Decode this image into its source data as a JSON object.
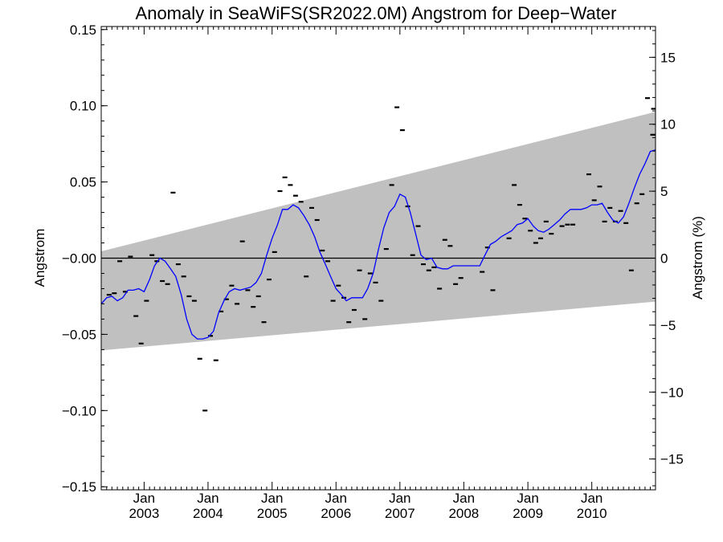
{
  "chart_data": {
    "type": "scatter",
    "title": "Anomaly in SeaWiFS(SR2022.0M) Angstrom for Deep−Water",
    "ylabel": "Angstrom",
    "ylabel_right": "Angstrom (%)",
    "x_range": [
      "2002-05-01",
      "2010-12-31"
    ],
    "ylim": [
      -0.152,
      0.152
    ],
    "ylim_right": [
      -17.3,
      17.3
    ],
    "y_ticks": [
      -0.15,
      -0.1,
      -0.05,
      0.0,
      0.05,
      0.1,
      0.15
    ],
    "y_tick_labels": [
      "−0.15",
      "−0.10",
      "−0.05",
      "−0.00",
      "0.05",
      "0.10",
      "0.15"
    ],
    "y_right_ticks": [
      -15,
      -10,
      -5,
      0,
      5,
      10,
      15
    ],
    "y_right_tick_labels": [
      "−15",
      "−10",
      "−5",
      "0",
      "5",
      "10",
      "15"
    ],
    "x_ticks": [
      {
        "date": "2003-01-01",
        "month": "Jan",
        "year": "2003"
      },
      {
        "date": "2004-01-01",
        "month": "Jan",
        "year": "2004"
      },
      {
        "date": "2005-01-01",
        "month": "Jan",
        "year": "2005"
      },
      {
        "date": "2006-01-01",
        "month": "Jan",
        "year": "2006"
      },
      {
        "date": "2007-01-01",
        "month": "Jan",
        "year": "2007"
      },
      {
        "date": "2008-01-01",
        "month": "Jan",
        "year": "2008"
      },
      {
        "date": "2009-01-01",
        "month": "Jan",
        "year": "2009"
      },
      {
        "date": "2010-01-01",
        "month": "Jan",
        "year": "2010"
      }
    ],
    "envelope": {
      "color": "#c0c0c0",
      "upper": [
        [
          "2002-05-01",
          0.0045
        ],
        [
          "2010-12-31",
          0.096
        ]
      ],
      "lower": [
        [
          "2002-05-01",
          -0.0605
        ],
        [
          "2010-12-31",
          -0.0285
        ]
      ]
    },
    "zero_line": 0.0,
    "series": [
      {
        "kind": "monthly",
        "color": "#000000",
        "points": [
          [
            "2002-06",
            -0.024
          ],
          [
            "2002-07",
            -0.023
          ],
          [
            "2002-08",
            -0.002
          ],
          [
            "2002-09",
            -0.022
          ],
          [
            "2002-10",
            0.001
          ],
          [
            "2002-11",
            -0.038
          ],
          [
            "2002-12",
            -0.056
          ],
          [
            "2003-01",
            -0.028
          ],
          [
            "2003-02",
            0.002
          ],
          [
            "2003-03",
            -0.002
          ],
          [
            "2003-04",
            -0.015
          ],
          [
            "2003-05",
            -0.017
          ],
          [
            "2003-06",
            0.043
          ],
          [
            "2003-07",
            -0.004
          ],
          [
            "2003-08",
            -0.012
          ],
          [
            "2003-09",
            -0.025
          ],
          [
            "2003-10",
            -0.028
          ],
          [
            "2003-11",
            -0.066
          ],
          [
            "2003-12",
            -0.1
          ],
          [
            "2004-01",
            -0.051
          ],
          [
            "2004-02",
            -0.067
          ],
          [
            "2004-03",
            -0.035
          ],
          [
            "2004-04",
            -0.027
          ],
          [
            "2004-05",
            -0.018
          ],
          [
            "2004-06",
            -0.03
          ],
          [
            "2004-07",
            0.011
          ],
          [
            "2004-08",
            -0.021
          ],
          [
            "2004-09",
            -0.032
          ],
          [
            "2004-10",
            -0.025
          ],
          [
            "2004-11",
            -0.042
          ],
          [
            "2004-12",
            -0.014
          ],
          [
            "2005-01",
            0.004
          ],
          [
            "2005-02",
            0.044
          ],
          [
            "2005-03",
            0.053
          ],
          [
            "2005-04",
            0.048
          ],
          [
            "2005-05",
            0.041
          ],
          [
            "2005-06",
            0.037
          ],
          [
            "2005-07",
            -0.012
          ],
          [
            "2005-08",
            0.033
          ],
          [
            "2005-09",
            0.025
          ],
          [
            "2005-10",
            0.005
          ],
          [
            "2005-11",
            -0.002
          ],
          [
            "2005-12",
            -0.028
          ],
          [
            "2006-01",
            -0.018
          ],
          [
            "2006-02",
            -0.026
          ],
          [
            "2006-03",
            -0.042
          ],
          [
            "2006-04",
            -0.034
          ],
          [
            "2006-05",
            -0.008
          ],
          [
            "2006-06",
            -0.04
          ],
          [
            "2006-07",
            -0.01
          ],
          [
            "2006-08",
            -0.016
          ],
          [
            "2006-09",
            -0.028
          ],
          [
            "2006-10",
            0.006
          ],
          [
            "2006-11",
            0.048
          ],
          [
            "2006-12",
            0.099
          ],
          [
            "2007-01",
            0.084
          ],
          [
            "2007-02",
            0.034
          ],
          [
            "2007-03",
            0.002
          ],
          [
            "2007-04",
            0.021
          ],
          [
            "2007-05",
            -0.004
          ],
          [
            "2007-06",
            -0.008
          ],
          [
            "2007-07",
            -0.006
          ],
          [
            "2007-08",
            -0.02
          ],
          [
            "2007-09",
            0.012
          ],
          [
            "2007-10",
            0.008
          ],
          [
            "2007-11",
            -0.017
          ],
          [
            "2007-12",
            -0.013
          ],
          [
            "2008-04",
            -0.009
          ],
          [
            "2008-05",
            0.007
          ],
          [
            "2008-06",
            -0.021
          ],
          [
            "2008-09",
            0.013
          ],
          [
            "2008-10",
            0.048
          ],
          [
            "2008-11",
            0.035
          ],
          [
            "2008-12",
            0.026
          ],
          [
            "2009-01",
            0.018
          ],
          [
            "2009-02",
            0.01
          ],
          [
            "2009-03",
            0.013
          ],
          [
            "2009-04",
            0.024
          ],
          [
            "2009-05",
            0.016
          ],
          [
            "2009-07",
            0.021
          ],
          [
            "2009-08",
            0.022
          ],
          [
            "2009-09",
            0.022
          ],
          [
            "2009-12",
            0.055
          ],
          [
            "2010-01",
            0.038
          ],
          [
            "2010-02",
            0.047
          ],
          [
            "2010-03",
            0.024
          ],
          [
            "2010-04",
            0.033
          ],
          [
            "2010-05",
            0.024
          ],
          [
            "2010-06",
            0.031
          ],
          [
            "2010-07",
            0.023
          ],
          [
            "2010-08",
            -0.008
          ],
          [
            "2010-09",
            0.036
          ],
          [
            "2010-10",
            0.042
          ],
          [
            "2010-11",
            0.105
          ],
          [
            "2010-12",
            0.081
          ],
          [
            "2010-12-20",
            0.098
          ]
        ]
      },
      {
        "kind": "smoothed",
        "color": "#0000ff",
        "points": [
          [
            "2002-05-01",
            -0.03
          ],
          [
            "2002-06-01",
            -0.026
          ],
          [
            "2002-07-01",
            -0.025
          ],
          [
            "2002-08-01",
            -0.028
          ],
          [
            "2002-09-01",
            -0.026
          ],
          [
            "2002-10-01",
            -0.021
          ],
          [
            "2002-11-01",
            -0.021
          ],
          [
            "2002-12-01",
            -0.02
          ],
          [
            "2003-01-01",
            -0.022
          ],
          [
            "2003-02-01",
            -0.014
          ],
          [
            "2003-03-01",
            -0.005
          ],
          [
            "2003-04-01",
            0.0
          ],
          [
            "2003-05-01",
            -0.002
          ],
          [
            "2003-06-01",
            -0.007
          ],
          [
            "2003-07-01",
            -0.012
          ],
          [
            "2003-08-01",
            -0.024
          ],
          [
            "2003-09-01",
            -0.04
          ],
          [
            "2003-10-01",
            -0.05
          ],
          [
            "2003-11-01",
            -0.053
          ],
          [
            "2003-12-01",
            -0.053
          ],
          [
            "2004-01-01",
            -0.052
          ],
          [
            "2004-02-01",
            -0.048
          ],
          [
            "2004-03-01",
            -0.036
          ],
          [
            "2004-04-01",
            -0.028
          ],
          [
            "2004-05-01",
            -0.022
          ],
          [
            "2004-06-01",
            -0.02
          ],
          [
            "2004-07-01",
            -0.021
          ],
          [
            "2004-08-01",
            -0.02
          ],
          [
            "2004-09-01",
            -0.019
          ],
          [
            "2004-10-01",
            -0.016
          ],
          [
            "2004-11-01",
            -0.01
          ],
          [
            "2004-12-01",
            0.002
          ],
          [
            "2005-01-01",
            0.013
          ],
          [
            "2005-02-01",
            0.022
          ],
          [
            "2005-03-01",
            0.032
          ],
          [
            "2005-04-01",
            0.032
          ],
          [
            "2005-05-01",
            0.035
          ],
          [
            "2005-06-01",
            0.033
          ],
          [
            "2005-07-01",
            0.028
          ],
          [
            "2005-08-01",
            0.022
          ],
          [
            "2005-09-01",
            0.014
          ],
          [
            "2005-10-01",
            0.004
          ],
          [
            "2005-11-01",
            -0.004
          ],
          [
            "2005-12-01",
            -0.012
          ],
          [
            "2006-01-01",
            -0.02
          ],
          [
            "2006-02-01",
            -0.024
          ],
          [
            "2006-03-01",
            -0.028
          ],
          [
            "2006-04-01",
            -0.026
          ],
          [
            "2006-05-01",
            -0.026
          ],
          [
            "2006-06-01",
            -0.026
          ],
          [
            "2006-07-01",
            -0.02
          ],
          [
            "2006-08-01",
            -0.01
          ],
          [
            "2006-09-01",
            0.006
          ],
          [
            "2006-10-01",
            0.02
          ],
          [
            "2006-11-01",
            0.03
          ],
          [
            "2006-12-01",
            0.034
          ],
          [
            "2007-01-01",
            0.042
          ],
          [
            "2007-02-01",
            0.04
          ],
          [
            "2007-03-01",
            0.03
          ],
          [
            "2007-04-01",
            0.016
          ],
          [
            "2007-05-01",
            0.002
          ],
          [
            "2007-06-01",
            -0.001
          ],
          [
            "2007-07-01",
            0.0
          ],
          [
            "2007-08-01",
            -0.006
          ],
          [
            "2007-09-01",
            -0.007
          ],
          [
            "2007-10-01",
            -0.007
          ],
          [
            "2007-11-01",
            -0.005
          ],
          [
            "2007-12-01",
            -0.005
          ],
          [
            "2008-01-01",
            -0.005
          ],
          [
            "2008-02-01",
            -0.005
          ],
          [
            "2008-03-01",
            -0.005
          ],
          [
            "2008-04-01",
            -0.005
          ],
          [
            "2008-05-01",
            0.002
          ],
          [
            "2008-06-01",
            0.009
          ],
          [
            "2008-07-01",
            0.011
          ],
          [
            "2008-08-01",
            0.014
          ],
          [
            "2008-09-01",
            0.016
          ],
          [
            "2008-10-01",
            0.018
          ],
          [
            "2008-11-01",
            0.022
          ],
          [
            "2008-12-01",
            0.023
          ],
          [
            "2009-01-01",
            0.026
          ],
          [
            "2009-02-01",
            0.021
          ],
          [
            "2009-03-01",
            0.018
          ],
          [
            "2009-04-01",
            0.017
          ],
          [
            "2009-05-01",
            0.019
          ],
          [
            "2009-06-01",
            0.022
          ],
          [
            "2009-07-01",
            0.025
          ],
          [
            "2009-08-01",
            0.029
          ],
          [
            "2009-09-01",
            0.032
          ],
          [
            "2009-10-01",
            0.032
          ],
          [
            "2009-11-01",
            0.032
          ],
          [
            "2009-12-01",
            0.033
          ],
          [
            "2010-01-01",
            0.035
          ],
          [
            "2010-02-01",
            0.035
          ],
          [
            "2010-03-01",
            0.036
          ],
          [
            "2010-04-01",
            0.03
          ],
          [
            "2010-05-01",
            0.025
          ],
          [
            "2010-06-01",
            0.023
          ],
          [
            "2010-07-01",
            0.027
          ],
          [
            "2010-08-01",
            0.036
          ],
          [
            "2010-09-01",
            0.046
          ],
          [
            "2010-10-01",
            0.055
          ],
          [
            "2010-11-01",
            0.062
          ],
          [
            "2010-12-01",
            0.07
          ],
          [
            "2010-12-31",
            0.071
          ]
        ]
      }
    ]
  }
}
